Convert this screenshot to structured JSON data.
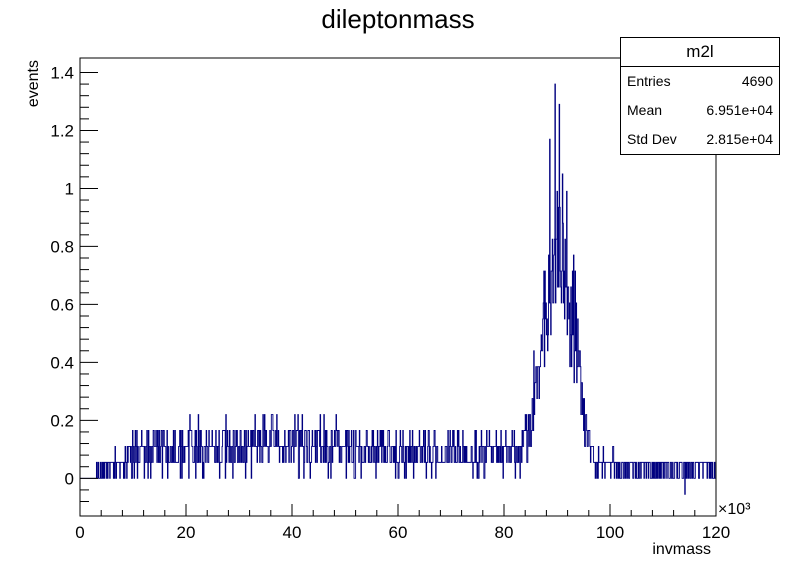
{
  "chart_data": {
    "type": "bar",
    "style": "histogram",
    "title": "dileptonmass",
    "xlabel": "invmass",
    "ylabel": "events",
    "x_multiplier_label": "×10³",
    "xlim": [
      0,
      120
    ],
    "ylim": [
      -0.13,
      1.45
    ],
    "x_ticks": [
      0,
      20,
      40,
      60,
      80,
      100,
      120
    ],
    "x_tick_labels": [
      "0",
      "20",
      "40",
      "60",
      "80",
      "100",
      "120"
    ],
    "y_ticks": [
      0,
      0.2,
      0.4,
      0.6,
      0.8,
      1,
      1.2,
      1.4
    ],
    "y_tick_labels": [
      "0",
      "0.2",
      "0.4",
      "0.6",
      "0.8",
      "1",
      "1.2",
      "1.4"
    ],
    "grid": false,
    "line_color": "#000080",
    "bin_width": 0.1,
    "profile": {
      "x": [
        3,
        5,
        8,
        10,
        12,
        15,
        20,
        25,
        30,
        35,
        40,
        45,
        50,
        55,
        60,
        65,
        70,
        75,
        80,
        83,
        85,
        86,
        87,
        88,
        89,
        90,
        91,
        92,
        93,
        94,
        95,
        96,
        97,
        98,
        100,
        105,
        110,
        115,
        120
      ],
      "mean": [
        0.02,
        0.03,
        0.05,
        0.08,
        0.1,
        0.1,
        0.11,
        0.1,
        0.11,
        0.12,
        0.12,
        0.11,
        0.1,
        0.1,
        0.09,
        0.09,
        0.08,
        0.08,
        0.09,
        0.11,
        0.2,
        0.3,
        0.42,
        0.58,
        0.72,
        0.82,
        0.8,
        0.72,
        0.58,
        0.42,
        0.25,
        0.14,
        0.07,
        0.05,
        0.04,
        0.03,
        0.03,
        0.03,
        0.03
      ]
    },
    "notable_peaks": [
      {
        "x": 89.6,
        "y": 1.36
      },
      {
        "x": 90.4,
        "y": 1.29
      },
      {
        "x": 88.6,
        "y": 1.17
      },
      {
        "x": 91.0,
        "y": 1.05
      }
    ],
    "stats_box": {
      "name": "m2l",
      "rows": [
        {
          "label": "Entries",
          "value": "4690"
        },
        {
          "label": "Mean",
          "value": "6.951e+04"
        },
        {
          "label": "Std Dev",
          "value": "2.815e+04"
        }
      ]
    }
  }
}
